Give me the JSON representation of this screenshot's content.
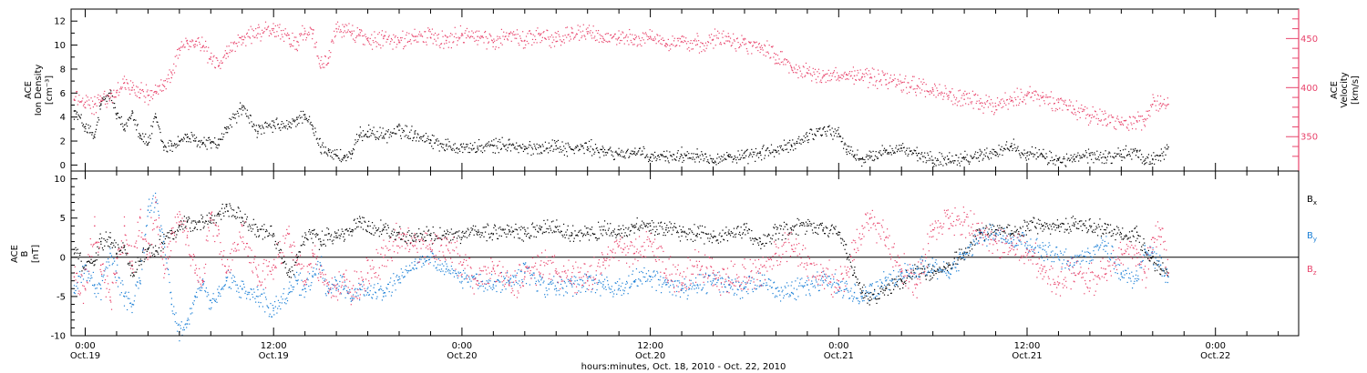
{
  "figure": {
    "xlabel": "hours:minutes, Oct. 18, 2010 - Oct. 22, 2010",
    "time_ticks": [
      {
        "hours": 24,
        "l1": "0:00",
        "l2": "Oct.19"
      },
      {
        "hours": 36,
        "l1": "12:00",
        "l2": "Oct.19"
      },
      {
        "hours": 48,
        "l1": "0:00",
        "l2": "Oct.20"
      },
      {
        "hours": 60,
        "l1": "12:00",
        "l2": "Oct.20"
      },
      {
        "hours": 72,
        "l1": "0:00",
        "l2": "Oct.21"
      },
      {
        "hours": 84,
        "l1": "12:00",
        "l2": "Oct.21"
      },
      {
        "hours": 96,
        "l1": "0:00",
        "l2": "Oct.22"
      }
    ],
    "time_range_hours": [
      23.1,
      101.3
    ]
  },
  "chart_data": [
    {
      "type": "scatter",
      "panel": "top",
      "ylabel_left": [
        "ACE",
        "Ion Density",
        "[cm⁻³]"
      ],
      "ylabel_right": [
        "ACE",
        "Velocity",
        "[km/s]"
      ],
      "left_axis": {
        "ylim": [
          -0.5,
          13
        ],
        "ticks": [
          0,
          2,
          4,
          6,
          8,
          10,
          12
        ]
      },
      "right_axis": {
        "ylim": [
          315,
          480
        ],
        "ticks": [
          350,
          400,
          450
        ],
        "color": "#e8436b"
      },
      "series": [
        {
          "color": "#000000",
          "axis": "left",
          "x_hours": [
            23.3,
            24.0,
            24.6,
            25.0,
            25.6,
            26.0,
            26.5,
            27.0,
            27.5,
            28.0,
            28.5,
            29.0,
            29.5,
            30.0,
            30.5,
            31.0,
            31.5,
            32.0,
            32.5,
            33.0,
            34.0,
            35.0,
            36.0,
            37.0,
            37.5,
            38.0,
            38.5,
            39.0,
            39.5,
            40.0,
            40.5,
            41.0,
            41.5,
            42.0,
            43.0,
            44.0,
            45.0,
            46.0,
            47.0,
            48.0,
            49.0,
            50.0,
            51.0,
            52.0,
            53.0,
            54.0,
            55.0,
            56.0,
            57.0,
            58.0,
            59.0,
            60.0,
            61.0,
            62.0,
            63.0,
            64.0,
            65.0,
            66.0,
            67.0,
            68.0,
            69.0,
            70.0,
            71.0,
            72.0,
            72.5,
            73.0,
            73.5,
            74.0,
            75.0,
            76.0,
            77.0,
            78.0,
            79.0,
            80.0,
            81.0,
            82.0,
            83.0,
            84.0,
            85.0,
            86.0,
            87.0,
            88.0,
            89.0,
            90.0,
            91.0,
            91.5,
            92.0,
            92.5,
            93.0
          ],
          "values": [
            4.5,
            3.2,
            2.3,
            5.0,
            6.0,
            4.2,
            3.0,
            4.5,
            2.5,
            1.8,
            4.0,
            1.5,
            1.6,
            2.0,
            2.3,
            2.0,
            1.8,
            1.9,
            1.7,
            3.0,
            4.8,
            2.8,
            3.3,
            3.2,
            3.8,
            4.2,
            3.0,
            1.5,
            1.2,
            0.8,
            0.6,
            0.9,
            2.5,
            2.8,
            2.4,
            2.9,
            2.6,
            2.1,
            1.6,
            1.5,
            1.4,
            1.6,
            1.7,
            1.3,
            1.5,
            1.6,
            1.3,
            1.5,
            1.1,
            0.9,
            1.1,
            0.6,
            0.7,
            0.8,
            0.9,
            0.5,
            0.7,
            0.6,
            1.0,
            1.2,
            1.6,
            2.4,
            3.0,
            2.6,
            1.3,
            0.8,
            0.5,
            0.6,
            1.2,
            1.4,
            0.8,
            0.4,
            0.5,
            0.6,
            0.8,
            1.1,
            1.6,
            1.0,
            0.7,
            0.4,
            0.5,
            0.8,
            0.6,
            0.9,
            1.1,
            0.4,
            0.5,
            0.8,
            1.5
          ]
        },
        {
          "color": "#e8436b",
          "axis": "right",
          "x_hours": [
            23.3,
            24.0,
            24.6,
            25.0,
            25.6,
            26.0,
            26.5,
            27.0,
            27.5,
            28.0,
            28.5,
            29.0,
            29.5,
            30.0,
            30.5,
            31.0,
            31.5,
            32.0,
            32.5,
            33.0,
            34.0,
            35.0,
            36.0,
            37.0,
            37.5,
            38.0,
            38.5,
            39.0,
            39.5,
            40.0,
            40.5,
            41.0,
            41.5,
            42.0,
            43.0,
            44.0,
            45.0,
            46.0,
            47.0,
            48.0,
            49.0,
            50.0,
            51.0,
            52.0,
            53.0,
            54.0,
            55.0,
            56.0,
            57.0,
            58.0,
            59.0,
            60.0,
            61.0,
            62.0,
            63.0,
            64.0,
            65.0,
            66.0,
            67.0,
            68.0,
            69.0,
            70.0,
            71.0,
            72.0,
            72.5,
            73.0,
            73.5,
            74.0,
            75.0,
            76.0,
            77.0,
            78.0,
            79.0,
            80.0,
            81.0,
            82.0,
            83.0,
            84.0,
            85.0,
            86.0,
            87.0,
            88.0,
            89.0,
            90.0,
            91.0,
            91.5,
            92.0,
            92.5,
            93.0
          ],
          "values": [
            388,
            385,
            383,
            386,
            390,
            395,
            405,
            400,
            398,
            392,
            396,
            402,
            410,
            440,
            448,
            444,
            442,
            431,
            422,
            435,
            452,
            455,
            460,
            450,
            447,
            455,
            455,
            420,
            430,
            460,
            462,
            455,
            453,
            448,
            450,
            446,
            452,
            451,
            448,
            455,
            452,
            446,
            455,
            448,
            454,
            447,
            456,
            455,
            450,
            451,
            449,
            452,
            445,
            447,
            444,
            449,
            452,
            444,
            441,
            434,
            420,
            415,
            411,
            412,
            413,
            412,
            411,
            410,
            408,
            405,
            402,
            398,
            392,
            388,
            384,
            381,
            387,
            392,
            390,
            385,
            378,
            372,
            368,
            365,
            366,
            368,
            383,
            384,
            383
          ]
        }
      ]
    },
    {
      "type": "scatter",
      "panel": "bottom",
      "ylabel_left": [
        "ACE",
        "B",
        "[nT]"
      ],
      "ylim": [
        -10,
        11
      ],
      "ticks": [
        -10,
        -5,
        0,
        5,
        10
      ],
      "zero_line": true,
      "legend_placement": "right",
      "series": [
        {
          "name": "B",
          "name_sub": "x",
          "color": "#000000",
          "x_hours": [
            23.3,
            24.0,
            24.6,
            25.0,
            25.6,
            26.0,
            26.5,
            27.0,
            27.5,
            28.0,
            28.5,
            29.0,
            29.5,
            30.0,
            30.5,
            31.0,
            31.5,
            32.0,
            32.5,
            33.0,
            34.0,
            35.0,
            36.0,
            37.0,
            37.5,
            38.0,
            38.5,
            39.0,
            39.5,
            40.0,
            40.5,
            41.0,
            41.5,
            42.0,
            43.0,
            44.0,
            45.0,
            46.0,
            47.0,
            48.0,
            49.0,
            50.0,
            51.0,
            52.0,
            53.0,
            54.0,
            55.0,
            56.0,
            57.0,
            58.0,
            59.0,
            60.0,
            61.0,
            62.0,
            63.0,
            64.0,
            65.0,
            66.0,
            67.0,
            68.0,
            69.0,
            70.0,
            71.0,
            72.0,
            72.5,
            73.0,
            73.5,
            74.0,
            75.0,
            76.0,
            77.0,
            78.0,
            79.0,
            80.0,
            81.0,
            82.0,
            83.0,
            84.0,
            85.0,
            86.0,
            87.0,
            88.0,
            89.0,
            90.0,
            91.0,
            91.5,
            92.0,
            92.5,
            93.0
          ],
          "values": [
            1.0,
            -1.5,
            -0.5,
            2.0,
            2.5,
            0.5,
            1.5,
            -2.0,
            -0.5,
            1.0,
            0.8,
            2.0,
            3.0,
            4.0,
            4.5,
            3.8,
            4.5,
            5.0,
            5.5,
            6.5,
            5.0,
            3.5,
            3.0,
            -2.5,
            0.0,
            2.5,
            3.0,
            2.0,
            3.0,
            2.5,
            3.0,
            3.5,
            4.5,
            4.0,
            3.5,
            3.0,
            2.5,
            2.8,
            3.0,
            2.5,
            3.2,
            3.0,
            3.5,
            3.0,
            3.5,
            3.8,
            2.8,
            3.2,
            3.5,
            3.0,
            3.8,
            4.0,
            3.5,
            3.2,
            3.0,
            2.5,
            3.0,
            3.5,
            2.0,
            3.0,
            3.5,
            4.0,
            3.5,
            3.2,
            0.5,
            -2.0,
            -4.5,
            -5.5,
            -4.0,
            -3.0,
            -1.5,
            -2.0,
            -1.0,
            0.5,
            3.0,
            3.5,
            3.0,
            4.0,
            4.0,
            3.8,
            4.0,
            4.0,
            3.5,
            3.0,
            3.2,
            1.0,
            0.0,
            -1.5,
            -2.0
          ]
        },
        {
          "name": "B",
          "name_sub": "y",
          "color": "#1a7fd6",
          "x_hours": [
            23.3,
            24.0,
            24.6,
            25.0,
            25.6,
            26.0,
            26.5,
            27.0,
            27.5,
            28.0,
            28.5,
            29.0,
            29.5,
            30.0,
            30.5,
            31.0,
            31.5,
            32.0,
            32.5,
            33.0,
            34.0,
            35.0,
            36.0,
            37.0,
            37.5,
            38.0,
            38.5,
            39.0,
            39.5,
            40.0,
            40.5,
            41.0,
            41.5,
            42.0,
            43.0,
            44.0,
            45.0,
            46.0,
            47.0,
            48.0,
            49.0,
            50.0,
            51.0,
            52.0,
            53.0,
            54.0,
            55.0,
            56.0,
            57.0,
            58.0,
            59.0,
            60.0,
            61.0,
            62.0,
            63.0,
            64.0,
            65.0,
            66.0,
            67.0,
            68.0,
            69.0,
            70.0,
            71.0,
            72.0,
            72.5,
            73.0,
            73.5,
            74.0,
            75.0,
            76.0,
            77.0,
            78.0,
            79.0,
            80.0,
            81.0,
            82.0,
            83.0,
            84.0,
            85.0,
            86.0,
            87.0,
            88.0,
            89.0,
            90.0,
            91.0,
            91.5,
            92.0,
            92.5,
            93.0
          ],
          "values": [
            -4.5,
            -1.5,
            -3.5,
            -4.0,
            0.5,
            -2.0,
            -5.0,
            -6.0,
            -3.0,
            6.0,
            7.0,
            2.0,
            -6.0,
            -9.5,
            -8.5,
            -5.0,
            -3.5,
            -5.5,
            -4.5,
            -3.0,
            -4.0,
            -5.0,
            -6.5,
            -4.5,
            -3.0,
            -4.0,
            -2.5,
            -1.0,
            -4.5,
            -3.0,
            -4.0,
            -5.5,
            -4.0,
            -4.5,
            -5.0,
            -2.5,
            -1.0,
            0.0,
            -1.5,
            -2.5,
            -3.0,
            -3.5,
            -3.0,
            -2.0,
            -3.5,
            -4.0,
            -3.5,
            -3.0,
            -3.5,
            -4.0,
            -3.0,
            -2.5,
            -3.5,
            -4.0,
            -3.5,
            -3.0,
            -3.5,
            -4.0,
            -3.0,
            -4.0,
            -4.5,
            -3.5,
            -3.0,
            -3.5,
            -4.0,
            -4.5,
            -5.0,
            -4.5,
            -3.0,
            -2.0,
            -1.5,
            -1.0,
            -2.0,
            0.5,
            2.5,
            3.0,
            2.0,
            2.0,
            1.0,
            0.0,
            -1.0,
            0.5,
            1.5,
            -2.0,
            -3.0,
            1.5,
            0.5,
            -1.0,
            -2.5
          ]
        },
        {
          "name": "B",
          "name_sub": "z",
          "color": "#e8436b",
          "x_hours": [
            23.3,
            24.0,
            24.6,
            25.0,
            25.6,
            26.0,
            26.5,
            27.0,
            27.5,
            28.0,
            28.5,
            29.0,
            29.5,
            30.0,
            30.5,
            31.0,
            31.5,
            32.0,
            32.5,
            33.0,
            34.0,
            35.0,
            36.0,
            37.0,
            37.5,
            38.0,
            38.5,
            39.0,
            39.5,
            40.0,
            40.5,
            41.0,
            41.5,
            42.0,
            43.0,
            44.0,
            45.0,
            46.0,
            47.0,
            48.0,
            49.0,
            50.0,
            51.0,
            52.0,
            53.0,
            54.0,
            55.0,
            56.0,
            57.0,
            58.0,
            59.0,
            60.0,
            61.0,
            62.0,
            63.0,
            64.0,
            65.0,
            66.0,
            67.0,
            68.0,
            69.0,
            70.0,
            71.0,
            72.0,
            72.5,
            73.0,
            73.5,
            74.0,
            75.0,
            76.0,
            77.0,
            78.0,
            79.0,
            80.0,
            81.0,
            82.0,
            83.0,
            84.0,
            85.0,
            86.0,
            87.0,
            88.0,
            89.0,
            90.0,
            91.0,
            91.5,
            92.0,
            92.5,
            93.0
          ],
          "values": [
            -2.5,
            -4.0,
            4.0,
            -1.0,
            -5.5,
            -2.0,
            4.0,
            -1.0,
            5.0,
            0.0,
            7.0,
            -1.0,
            3.0,
            4.5,
            2.5,
            -2.0,
            -3.0,
            5.5,
            3.5,
            -2.0,
            4.0,
            -2.5,
            -1.0,
            3.0,
            -1.0,
            -3.0,
            0.5,
            -2.5,
            -3.5,
            -4.0,
            -2.5,
            -4.0,
            -3.5,
            -2.0,
            0.0,
            2.5,
            1.5,
            1.0,
            1.5,
            -1.0,
            -3.0,
            -1.5,
            -3.5,
            -2.5,
            -1.0,
            -2.0,
            -2.5,
            -3.0,
            -1.0,
            1.5,
            0.5,
            2.0,
            -1.5,
            -3.5,
            -1.0,
            -2.0,
            -3.0,
            -2.5,
            -2.0,
            0.5,
            1.5,
            -1.0,
            -2.5,
            -3.0,
            -2.0,
            1.0,
            4.0,
            5.0,
            2.5,
            -1.5,
            -3.5,
            3.5,
            5.0,
            4.5,
            3.5,
            2.0,
            1.5,
            1.0,
            -1.5,
            -3.5,
            -2.0,
            -3.0,
            -1.5,
            1.0,
            0.5,
            -2.0,
            2.5,
            3.5,
            -2.0
          ]
        }
      ]
    }
  ]
}
